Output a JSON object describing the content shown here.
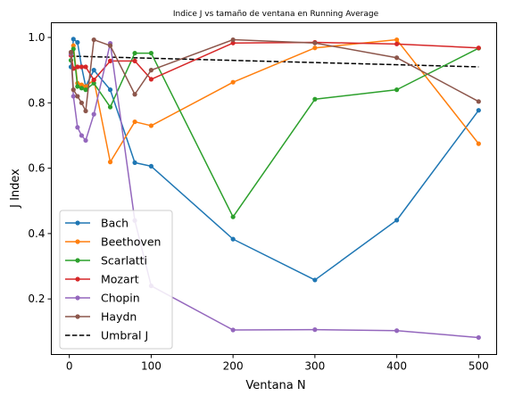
{
  "chart_data": {
    "type": "line",
    "title": "Indice J vs tamaño de ventana en Running Average",
    "xlabel": "Ventana N",
    "ylabel": "J Index",
    "xlim": [
      -22,
      522
    ],
    "ylim": [
      0.03,
      1.045
    ],
    "xticks": [
      0,
      100,
      200,
      300,
      400,
      500
    ],
    "yticks": [
      0.2,
      0.4,
      0.6,
      0.8,
      1.0
    ],
    "ytick_labels": [
      "0.2",
      "0.4",
      "0.6",
      "0.8",
      "1.0"
    ],
    "grid": false,
    "legend_position": "lower-left",
    "series": [
      {
        "name": "Bach",
        "color": "#1f77b4",
        "x": [
          2,
          5,
          10,
          15,
          20,
          30,
          50,
          80,
          100,
          200,
          300,
          400,
          500
        ],
        "y": [
          0.91,
          0.995,
          0.985,
          0.91,
          0.85,
          0.9,
          0.84,
          0.617,
          0.606,
          0.383,
          0.258,
          0.441,
          0.777
        ]
      },
      {
        "name": "Beethoven",
        "color": "#ff7f0e",
        "x": [
          2,
          5,
          10,
          15,
          20,
          30,
          50,
          80,
          100,
          200,
          300,
          400,
          500
        ],
        "y": [
          0.95,
          0.975,
          0.86,
          0.855,
          0.85,
          0.87,
          0.619,
          0.742,
          0.73,
          0.863,
          0.968,
          0.993,
          0.675
        ]
      },
      {
        "name": "Scarlatti",
        "color": "#2ca02c",
        "x": [
          2,
          5,
          10,
          15,
          20,
          30,
          50,
          80,
          100,
          200,
          300,
          400,
          500
        ],
        "y": [
          0.93,
          0.965,
          0.85,
          0.845,
          0.84,
          0.86,
          0.787,
          0.952,
          0.952,
          0.451,
          0.811,
          0.84,
          0.967
        ]
      },
      {
        "name": "Mozart",
        "color": "#d62728",
        "x": [
          2,
          5,
          10,
          15,
          20,
          30,
          50,
          80,
          100,
          200,
          300,
          400,
          500
        ],
        "y": [
          0.945,
          0.905,
          0.91,
          0.91,
          0.91,
          0.87,
          0.928,
          0.928,
          0.872,
          0.983,
          0.985,
          0.98,
          0.968
        ]
      },
      {
        "name": "Chopin",
        "color": "#9467bd",
        "x": [
          2,
          5,
          10,
          15,
          20,
          30,
          50,
          80,
          100,
          200,
          300,
          400,
          500
        ],
        "y": [
          0.95,
          0.82,
          0.725,
          0.7,
          0.685,
          0.765,
          0.982,
          0.44,
          0.24,
          0.105,
          0.106,
          0.103,
          0.082
        ]
      },
      {
        "name": "Haydn",
        "color": "#8c564b",
        "x": [
          2,
          5,
          10,
          15,
          20,
          30,
          50,
          80,
          100,
          200,
          300,
          400,
          500
        ],
        "y": [
          0.955,
          0.84,
          0.82,
          0.8,
          0.775,
          0.993,
          0.975,
          0.826,
          0.9,
          0.993,
          0.983,
          0.938,
          0.804
        ]
      }
    ],
    "threshold": {
      "name": "Umbral J",
      "color": "#000000",
      "x": [
        0,
        500
      ],
      "y": [
        0.943,
        0.91
      ]
    }
  }
}
